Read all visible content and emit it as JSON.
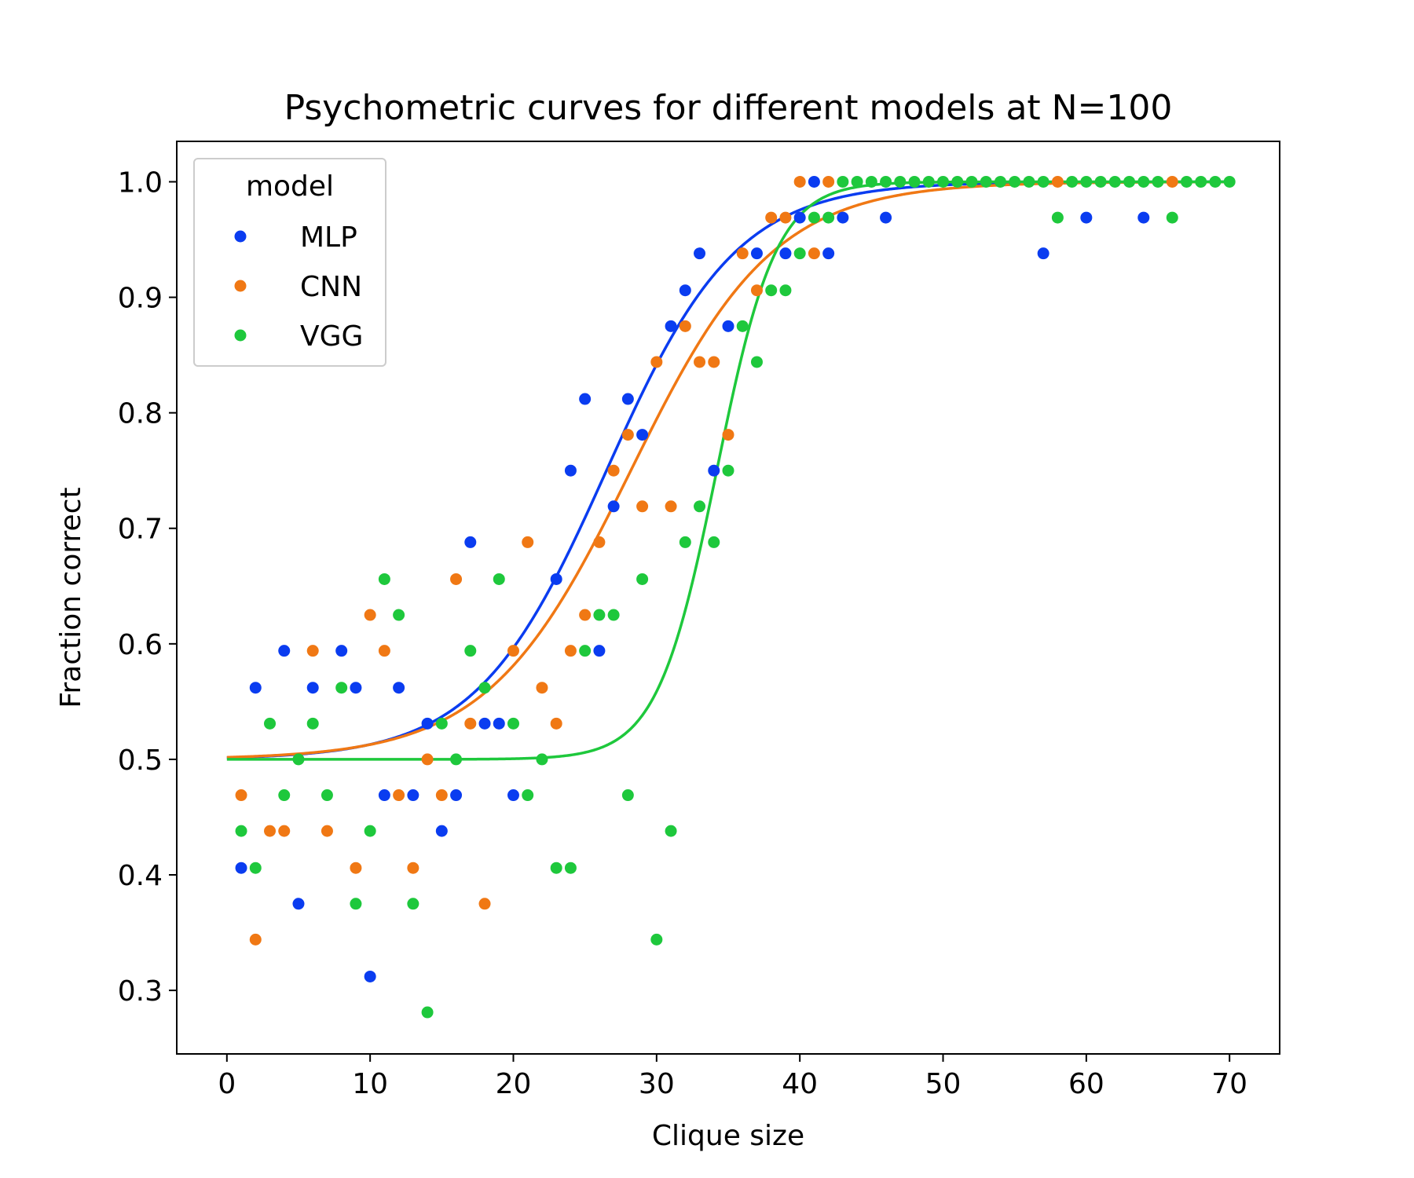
{
  "chart_data": {
    "type": "scatter",
    "title": "Psychometric curves for different models at N=100",
    "xlabel": "Clique size",
    "ylabel": "Fraction correct",
    "xlim": [
      -3.5,
      73.5
    ],
    "ylim": [
      0.245,
      1.035
    ],
    "xticks": [
      0,
      10,
      20,
      30,
      40,
      50,
      60,
      70
    ],
    "xtick_labels": [
      "0",
      "10",
      "20",
      "30",
      "40",
      "50",
      "60",
      "70"
    ],
    "yticks": [
      0.3,
      0.4,
      0.5,
      0.6,
      0.7,
      0.8,
      0.9,
      1.0
    ],
    "ytick_labels": [
      "0.3",
      "0.4",
      "0.5",
      "0.6",
      "0.7",
      "0.8",
      "0.9",
      "1.0"
    ],
    "grid": false,
    "legend": {
      "title": "model",
      "position": "top-left"
    },
    "series": [
      {
        "name": "MLP",
        "color": "#0a3cf0",
        "points": [
          [
            1,
            0.406
          ],
          [
            2,
            0.562
          ],
          [
            4,
            0.594
          ],
          [
            5,
            0.375
          ],
          [
            6,
            0.562
          ],
          [
            8,
            0.594
          ],
          [
            9,
            0.562
          ],
          [
            10,
            0.312
          ],
          [
            11,
            0.469
          ],
          [
            12,
            0.562
          ],
          [
            13,
            0.469
          ],
          [
            14,
            0.531
          ],
          [
            15,
            0.438
          ],
          [
            16,
            0.469
          ],
          [
            17,
            0.688
          ],
          [
            18,
            0.531
          ],
          [
            19,
            0.531
          ],
          [
            20,
            0.469
          ],
          [
            23,
            0.656
          ],
          [
            24,
            0.75
          ],
          [
            25,
            0.812
          ],
          [
            26,
            0.594
          ],
          [
            27,
            0.719
          ],
          [
            28,
            0.812
          ],
          [
            29,
            0.781
          ],
          [
            31,
            0.875
          ],
          [
            32,
            0.906
          ],
          [
            33,
            0.938
          ],
          [
            34,
            0.75
          ],
          [
            35,
            0.875
          ],
          [
            37,
            0.938
          ],
          [
            39,
            0.938
          ],
          [
            40,
            0.969
          ],
          [
            41,
            1.0
          ],
          [
            42,
            0.938
          ],
          [
            43,
            0.969
          ],
          [
            46,
            0.969
          ],
          [
            57,
            0.938
          ],
          [
            60,
            0.969
          ],
          [
            64,
            0.969
          ]
        ],
        "fit": {
          "midpoint": 26.5,
          "slope": 0.22
        }
      },
      {
        "name": "CNN",
        "color": "#f07814",
        "points": [
          [
            1,
            0.469
          ],
          [
            2,
            0.344
          ],
          [
            3,
            0.438
          ],
          [
            4,
            0.438
          ],
          [
            6,
            0.594
          ],
          [
            7,
            0.438
          ],
          [
            9,
            0.406
          ],
          [
            10,
            0.625
          ],
          [
            11,
            0.594
          ],
          [
            12,
            0.469
          ],
          [
            13,
            0.406
          ],
          [
            14,
            0.5
          ],
          [
            15,
            0.469
          ],
          [
            16,
            0.656
          ],
          [
            17,
            0.531
          ],
          [
            18,
            0.375
          ],
          [
            20,
            0.594
          ],
          [
            21,
            0.688
          ],
          [
            22,
            0.562
          ],
          [
            23,
            0.531
          ],
          [
            24,
            0.594
          ],
          [
            25,
            0.625
          ],
          [
            26,
            0.688
          ],
          [
            27,
            0.75
          ],
          [
            28,
            0.781
          ],
          [
            29,
            0.719
          ],
          [
            30,
            0.844
          ],
          [
            31,
            0.719
          ],
          [
            32,
            0.875
          ],
          [
            33,
            0.844
          ],
          [
            34,
            0.844
          ],
          [
            35,
            0.781
          ],
          [
            36,
            0.938
          ],
          [
            37,
            0.906
          ],
          [
            38,
            0.969
          ],
          [
            39,
            0.969
          ],
          [
            40,
            1.0
          ],
          [
            41,
            0.938
          ],
          [
            42,
            1.0
          ],
          [
            58,
            1.0
          ],
          [
            66,
            1.0
          ]
        ],
        "fit": {
          "midpoint": 28.2,
          "slope": 0.2
        }
      },
      {
        "name": "VGG",
        "color": "#1ec83c",
        "points": [
          [
            1,
            0.438
          ],
          [
            2,
            0.406
          ],
          [
            3,
            0.531
          ],
          [
            4,
            0.469
          ],
          [
            5,
            0.5
          ],
          [
            6,
            0.531
          ],
          [
            7,
            0.469
          ],
          [
            8,
            0.562
          ],
          [
            9,
            0.375
          ],
          [
            10,
            0.438
          ],
          [
            11,
            0.656
          ],
          [
            12,
            0.625
          ],
          [
            13,
            0.375
          ],
          [
            14,
            0.281
          ],
          [
            15,
            0.531
          ],
          [
            16,
            0.5
          ],
          [
            17,
            0.594
          ],
          [
            18,
            0.562
          ],
          [
            19,
            0.656
          ],
          [
            20,
            0.531
          ],
          [
            21,
            0.469
          ],
          [
            22,
            0.5
          ],
          [
            23,
            0.406
          ],
          [
            24,
            0.406
          ],
          [
            25,
            0.594
          ],
          [
            26,
            0.625
          ],
          [
            27,
            0.625
          ],
          [
            28,
            0.469
          ],
          [
            29,
            0.656
          ],
          [
            30,
            0.344
          ],
          [
            31,
            0.438
          ],
          [
            32,
            0.688
          ],
          [
            33,
            0.719
          ],
          [
            34,
            0.688
          ],
          [
            35,
            0.75
          ],
          [
            36,
            0.875
          ],
          [
            37,
            0.844
          ],
          [
            38,
            0.906
          ],
          [
            39,
            0.906
          ],
          [
            40,
            0.938
          ],
          [
            41,
            0.969
          ],
          [
            42,
            0.969
          ],
          [
            43,
            1.0
          ],
          [
            44,
            1.0
          ],
          [
            45,
            1.0
          ],
          [
            46,
            1.0
          ],
          [
            47,
            1.0
          ],
          [
            48,
            1.0
          ],
          [
            49,
            1.0
          ],
          [
            50,
            1.0
          ],
          [
            51,
            1.0
          ],
          [
            52,
            1.0
          ],
          [
            53,
            1.0
          ],
          [
            54,
            1.0
          ],
          [
            55,
            1.0
          ],
          [
            56,
            1.0
          ],
          [
            57,
            1.0
          ],
          [
            58,
            0.969
          ],
          [
            59,
            1.0
          ],
          [
            60,
            1.0
          ],
          [
            61,
            1.0
          ],
          [
            62,
            1.0
          ],
          [
            63,
            1.0
          ],
          [
            64,
            1.0
          ],
          [
            65,
            1.0
          ],
          [
            66,
            0.969
          ],
          [
            67,
            1.0
          ],
          [
            68,
            1.0
          ],
          [
            69,
            1.0
          ],
          [
            70,
            1.0
          ]
        ],
        "fit": {
          "midpoint": 34.2,
          "slope": 0.48
        }
      }
    ]
  }
}
